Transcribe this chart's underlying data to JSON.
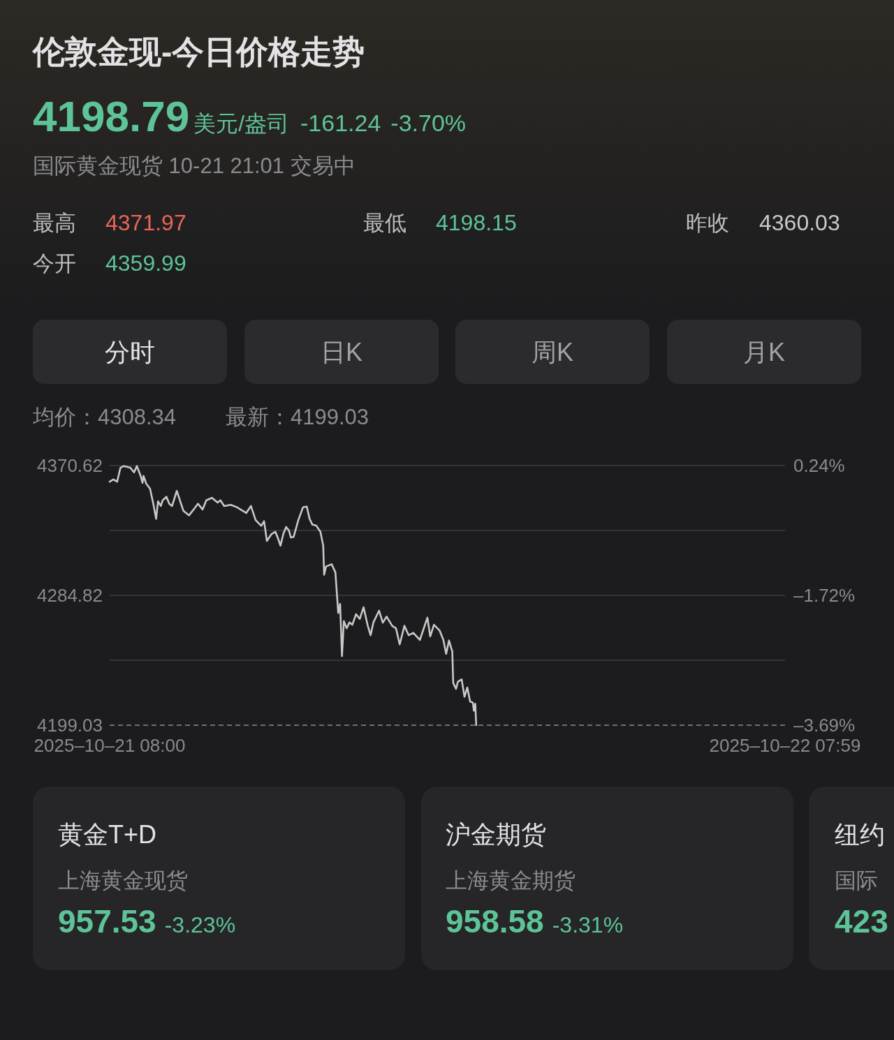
{
  "chart_data": {
    "type": "line",
    "title": "伦敦金现-今日价格走势",
    "subtitle": "国际黄金现货 10-21 21:01 交易中",
    "x": [
      "2025-10-21T08:00",
      "2025-10-21T08:08",
      "2025-10-21T08:16",
      "2025-10-21T08:23",
      "2025-10-21T08:30",
      "2025-10-21T08:44",
      "2025-10-21T08:52",
      "2025-10-21T08:58",
      "2025-10-21T09:06",
      "2025-10-21T09:10",
      "2025-10-21T09:12",
      "2025-10-21T09:18",
      "2025-10-21T09:26",
      "2025-10-21T09:33",
      "2025-10-21T09:39",
      "2025-10-21T09:43",
      "2025-10-21T09:49",
      "2025-10-21T09:53",
      "2025-10-21T10:01",
      "2025-10-21T10:07",
      "2025-10-21T10:13",
      "2025-10-21T10:23",
      "2025-10-21T10:37",
      "2025-10-21T10:49",
      "2025-10-21T10:57",
      "2025-10-21T11:08",
      "2025-10-21T11:18",
      "2025-10-21T11:26",
      "2025-10-21T11:38",
      "2025-10-21T11:50",
      "2025-10-21T11:56",
      "2025-10-21T12:04",
      "2025-10-21T12:18",
      "2025-10-21T12:31",
      "2025-10-21T12:43",
      "2025-10-21T12:51",
      "2025-10-21T13:01",
      "2025-10-21T13:11",
      "2025-10-21T13:23",
      "2025-10-21T13:29",
      "2025-10-21T13:35",
      "2025-10-21T13:45",
      "2025-10-21T13:53",
      "2025-10-21T13:58",
      "2025-10-21T14:04",
      "2025-10-21T14:10",
      "2025-10-21T14:16",
      "2025-10-21T14:22",
      "2025-10-21T14:26",
      "2025-10-21T14:32",
      "2025-10-21T14:42",
      "2025-10-21T14:52",
      "2025-10-21T15:00",
      "2025-10-21T15:06",
      "2025-10-21T15:12",
      "2025-10-21T15:20",
      "2025-10-21T15:29",
      "2025-10-21T15:35",
      "2025-10-21T15:37",
      "2025-10-21T15:41",
      "2025-10-21T15:53",
      "2025-10-21T16:01",
      "2025-10-21T16:07",
      "2025-10-21T16:11",
      "2025-10-21T16:15",
      "2025-10-21T16:19",
      "2025-10-21T16:25",
      "2025-10-21T16:31",
      "2025-10-21T16:37",
      "2025-10-21T16:45",
      "2025-10-21T16:53",
      "2025-10-21T17:01",
      "2025-10-21T17:10",
      "2025-10-21T17:16",
      "2025-10-21T17:22",
      "2025-10-21T17:34",
      "2025-10-21T17:42",
      "2025-10-21T17:50",
      "2025-10-21T18:02",
      "2025-10-21T18:10",
      "2025-10-21T18:18",
      "2025-10-21T18:28",
      "2025-10-21T18:37",
      "2025-10-21T18:47",
      "2025-10-21T19:01",
      "2025-10-21T19:17",
      "2025-10-21T19:23",
      "2025-10-21T19:31",
      "2025-10-21T19:43",
      "2025-10-21T19:51",
      "2025-10-21T19:57",
      "2025-10-21T20:03",
      "2025-10-21T20:10",
      "2025-10-21T20:12",
      "2025-10-21T20:18",
      "2025-10-21T20:22",
      "2025-10-21T20:30",
      "2025-10-21T20:36",
      "2025-10-21T20:42",
      "2025-10-21T20:48",
      "2025-10-21T20:54",
      "2025-10-21T20:56",
      "2025-10-21T20:59",
      "2025-10-21T21:01"
    ],
    "series": [
      {
        "color": "#c8c8c8",
        "values": [
          4360.0,
          4361.5,
          4360.0,
          4369.2,
          4370.3,
          4369.2,
          4366.1,
          4370.3,
          4363.8,
          4359.2,
          4363.8,
          4358.6,
          4355.4,
          4345.4,
          4335.4,
          4347.0,
          4343.9,
          4347.7,
          4350.0,
          4345.4,
          4343.9,
          4353.9,
          4340.8,
          4337.7,
          4340.8,
          4345.4,
          4341.6,
          4347.7,
          4349.3,
          4346.2,
          4347.7,
          4343.9,
          4344.7,
          4343.1,
          4340.8,
          4339.3,
          4343.9,
          4334.6,
          4330.8,
          4333.9,
          4320.8,
          4325.4,
          4326.9,
          4323.1,
          4317.7,
          4325.4,
          4330.0,
          4327.7,
          4323.1,
          4323.5,
          4334.6,
          4343.1,
          4343.5,
          4335.4,
          4331.6,
          4331.0,
          4326.9,
          4317.7,
          4298.5,
          4303.9,
          4305.4,
          4300.0,
          4273.2,
          4279.3,
          4244.7,
          4267.8,
          4263.1,
          4267.0,
          4265.4,
          4272.4,
          4269.3,
          4277.0,
          4264.7,
          4258.5,
          4267.0,
          4274.7,
          4266.8,
          4270.8,
          4264.7,
          4263.1,
          4252.4,
          4264.7,
          4258.5,
          4260.1,
          4255.4,
          4270.1,
          4257.7,
          4265.4,
          4261.6,
          4255.4,
          4246.2,
          4255.0,
          4247.8,
          4227.0,
          4223.1,
          4227.8,
          4229.3,
          4217.8,
          4223.9,
          4214.7,
          4213.9,
          4208.6,
          4213.2,
          4199.03
        ]
      }
    ],
    "xlim": [
      "2025-10-21T08:00",
      "2025-10-22T07:59"
    ],
    "xticks": [
      {
        "value": "2025-10-21T08:00",
        "label": "2025–10–21 08:00"
      },
      {
        "value": "2025-10-22T07:59",
        "label": "2025–10–22 07:59"
      }
    ],
    "ylim": [
      4199.03,
      4370.62
    ],
    "yticks": [
      4199.03,
      {
        "value": 4241.93,
        "label": null
      },
      4284.82,
      {
        "value": 4327.72,
        "label": null
      },
      4370.62
    ],
    "y2lim": [
      -3.69,
      0.24
    ],
    "y2ticks": [
      {
        "value": -3.69,
        "label": "–3.69%"
      },
      {
        "value": -1.72,
        "label": "–1.72%"
      },
      {
        "value": 0.24,
        "label": "0.24%"
      }
    ],
    "grid": "y",
    "line_style": "solid",
    "ref_lines": [
      {
        "axis": "y",
        "value": 4199.03,
        "line_style": "dashed",
        "color": "#8a8a8a"
      }
    ],
    "annotations": [
      "4198.79",
      "美元/盎司",
      "-161.24",
      "-3.70%",
      "最高",
      "4371.97",
      "最低",
      "4198.15",
      "昨收",
      "4360.03",
      "今开",
      "4359.99",
      "分时",
      "日K",
      "周K",
      "月K",
      "均价：4308.34",
      "最新：4199.03",
      "黄金T+D",
      "上海黄金现货",
      "957.53",
      "-3.23%",
      "沪金期货",
      "上海黄金期货",
      "958.58",
      "-3.31%",
      "纽约",
      "国际",
      "423"
    ]
  }
}
